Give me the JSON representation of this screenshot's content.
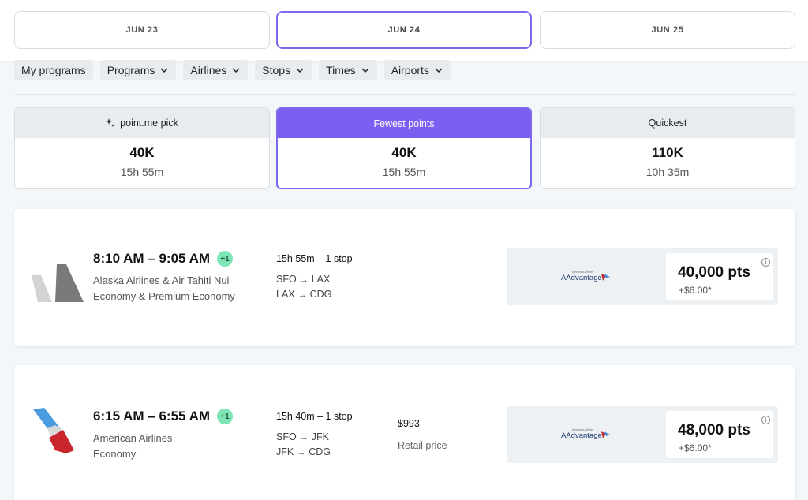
{
  "dates": [
    {
      "label": "JUN 23",
      "active": false
    },
    {
      "label": "JUN 24",
      "active": true
    },
    {
      "label": "JUN 25",
      "active": false
    }
  ],
  "filters": [
    {
      "label": "My programs",
      "dropdown": false
    },
    {
      "label": "Programs",
      "dropdown": true
    },
    {
      "label": "Airlines",
      "dropdown": true
    },
    {
      "label": "Stops",
      "dropdown": true
    },
    {
      "label": "Times",
      "dropdown": true
    },
    {
      "label": "Airports",
      "dropdown": true
    }
  ],
  "sort": [
    {
      "label": "point.me pick",
      "points": "40K",
      "duration": "15h 55m",
      "active": false,
      "icon": "sparkle-icon"
    },
    {
      "label": "Fewest points",
      "points": "40K",
      "duration": "15h 55m",
      "active": true
    },
    {
      "label": "Quickest",
      "points": "110K",
      "duration": "10h 35m",
      "active": false
    }
  ],
  "flights": [
    {
      "time": "8:10 AM – 9:05 AM",
      "day_offset": "+1",
      "airline": "Alaska Airlines & Air Tahiti Nui",
      "cabin": "Economy & Premium Economy",
      "summary": "15h 55m – 1 stop",
      "legs": [
        {
          "from": "SFO",
          "to": "LAX"
        },
        {
          "from": "LAX",
          "to": "CDG"
        }
      ],
      "retail_price": "",
      "retail_label": "",
      "program_logo_text": "AAdvantage",
      "points": "40,000 pts",
      "fee": "+$6.00*",
      "logo": "alaska-tail-icon"
    },
    {
      "time": "6:15 AM – 6:55 AM",
      "day_offset": "+1",
      "airline": "American Airlines",
      "cabin": "Economy",
      "summary": "15h 40m – 1 stop",
      "legs": [
        {
          "from": "SFO",
          "to": "JFK"
        },
        {
          "from": "JFK",
          "to": "CDG"
        }
      ],
      "retail_price": "$993",
      "retail_label": "Retail price",
      "program_logo_text": "AAdvantage",
      "points": "48,000 pts",
      "fee": "+$6.00*",
      "logo": "american-airlines-tail-icon"
    }
  ],
  "colors": {
    "accent": "#7c5ff0",
    "chip": "#e9ecef",
    "badge": "#7ee5b6"
  }
}
